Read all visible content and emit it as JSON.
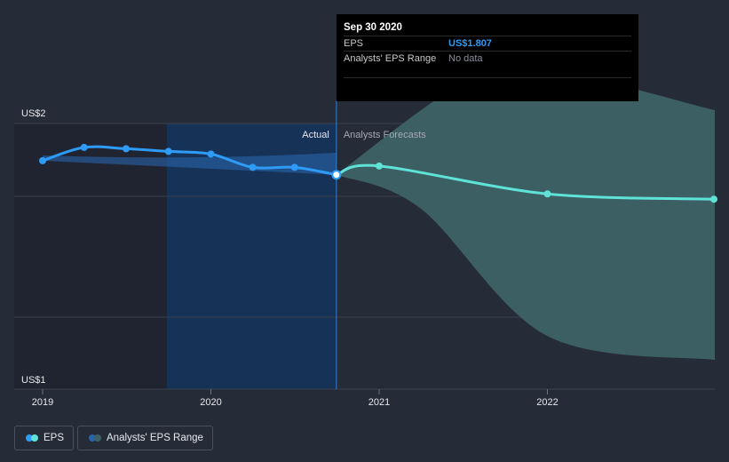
{
  "chart_data": {
    "type": "line",
    "x_ticks": [
      "2019",
      "2020",
      "2021",
      "2022"
    ],
    "y_ticks": [
      "US$1",
      "US$2"
    ],
    "ylim": [
      1.0,
      2.22
    ],
    "regions": {
      "actual_label": "Actual",
      "forecast_label": "Analysts Forecasts"
    },
    "series": [
      {
        "name": "EPS",
        "color": "#2e9cf6",
        "points": [
          {
            "x": "2019-01-01",
            "y": 1.86
          },
          {
            "x": "2019-04-01",
            "y": 1.91
          },
          {
            "x": "2019-07-01",
            "y": 1.905
          },
          {
            "x": "2019-10-01",
            "y": 1.895
          },
          {
            "x": "2020-01-01",
            "y": 1.885
          },
          {
            "x": "2020-04-01",
            "y": 1.835
          },
          {
            "x": "2020-07-01",
            "y": 1.835
          },
          {
            "x": "2020-09-30",
            "y": 1.807
          }
        ]
      },
      {
        "name": "EPS Forecast",
        "color": "#5ee3d6",
        "points": [
          {
            "x": "2020-09-30",
            "y": 1.807
          },
          {
            "x": "2021-01-01",
            "y": 1.84
          },
          {
            "x": "2022-01-01",
            "y": 1.735
          },
          {
            "x": "2022-12-31",
            "y": 1.715
          }
        ]
      }
    ],
    "range_band": {
      "name": "Analysts' EPS Range",
      "historical_upper": [
        {
          "x": "2019-01-01",
          "y": 1.88
        },
        {
          "x": "2020-09-30",
          "y": 1.89
        }
      ],
      "historical_lower": [
        {
          "x": "2019-01-01",
          "y": 1.86
        },
        {
          "x": "2020-09-30",
          "y": 1.807
        }
      ],
      "forecast_upper": [
        {
          "x": "2020-09-30",
          "y": 1.807
        },
        {
          "x": "2021-07-01",
          "y": 2.15
        },
        {
          "x": "2022-01-01",
          "y": 2.2
        },
        {
          "x": "2022-12-31",
          "y": 2.05
        }
      ],
      "forecast_lower": [
        {
          "x": "2020-09-30",
          "y": 1.807
        },
        {
          "x": "2021-04-01",
          "y": 1.68
        },
        {
          "x": "2022-01-01",
          "y": 1.2
        },
        {
          "x": "2022-12-31",
          "y": 1.11
        }
      ]
    },
    "colors": {
      "background": "#262b38",
      "actual_highlight": "#163256",
      "past_shade": "#202431",
      "band_forecast": "#3d6266",
      "band_history": "#2a62a8",
      "grid": "#39404f",
      "divider": "#2e7fd6",
      "axis_text": "#e6e8ec",
      "forecast_label": "#a4a9b3"
    }
  },
  "tooltip": {
    "date": "Sep 30 2020",
    "eps_label": "EPS",
    "eps_value": "US$1.807",
    "range_label": "Analysts' EPS Range",
    "range_value": "No data"
  },
  "legend": {
    "eps": {
      "label": "EPS",
      "colors": [
        "#2e9cf6",
        "#5ee3d6"
      ]
    },
    "range": {
      "label": "Analysts' EPS Range",
      "colors": [
        "#2a62a8",
        "#3d6266"
      ]
    }
  }
}
